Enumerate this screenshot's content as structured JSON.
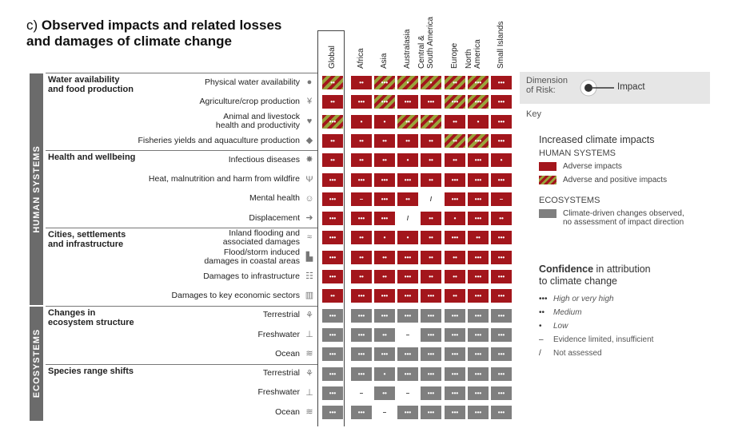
{
  "title": {
    "prefix": "c)",
    "line1": "Observed impacts and related losses",
    "line2": "and damages of climate change"
  },
  "colors": {
    "red": "#a3161c",
    "hatch": "#9aa43b",
    "grey": "#7f7f7f"
  },
  "columns": [
    "Global",
    "Africa",
    "Asia",
    "Australasia",
    "Central &\nSouth America",
    "Europe",
    "North\nAmerica",
    "Small Islands"
  ],
  "sections": [
    {
      "label": "HUMAN SYSTEMS",
      "groups": [
        {
          "label": "Water availability\nand food production",
          "rows": [
            {
              "label": "Physical water availability",
              "icon": "water-drop-icon",
              "glyph": "●",
              "cells": [
                [
                  "h",
                  "2"
                ],
                [
                  "r",
                  "2"
                ],
                [
                  "h",
                  "3"
                ],
                [
                  "h",
                  "1"
                ],
                [
                  "h",
                  "1"
                ],
                [
                  "h",
                  "2"
                ],
                [
                  "h",
                  "3"
                ],
                [
                  "r",
                  "3"
                ]
              ]
            },
            {
              "label": "Agriculture/crop production",
              "icon": "wheat-icon",
              "glyph": "¥",
              "cells": [
                [
                  "r",
                  "2"
                ],
                [
                  "r",
                  "3"
                ],
                [
                  "h",
                  "3"
                ],
                [
                  "r",
                  "3"
                ],
                [
                  "r",
                  "3"
                ],
                [
                  "h",
                  "3"
                ],
                [
                  "h",
                  "3"
                ],
                [
                  "r",
                  "3"
                ]
              ]
            },
            {
              "label": "Animal and livestock\nhealth and productivity",
              "icon": "cow-icon",
              "glyph": "♥",
              "cells": [
                [
                  "h",
                  "3"
                ],
                [
                  "r",
                  "1"
                ],
                [
                  "r",
                  "1"
                ],
                [
                  "h",
                  "2"
                ],
                [
                  "h",
                  "2"
                ],
                [
                  "r",
                  "2"
                ],
                [
                  "r",
                  "1"
                ],
                [
                  "r",
                  "3"
                ]
              ]
            },
            {
              "label": "Fisheries yields and aquaculture production",
              "icon": "fish-icon",
              "glyph": "◆",
              "cells": [
                [
                  "r",
                  "2"
                ],
                [
                  "r",
                  "2"
                ],
                [
                  "r",
                  "2"
                ],
                [
                  "r",
                  "2"
                ],
                [
                  "r",
                  "2"
                ],
                [
                  "h",
                  "2"
                ],
                [
                  "h",
                  "3"
                ],
                [
                  "r",
                  "3"
                ]
              ]
            }
          ]
        },
        {
          "label": "Health and wellbeing",
          "rows": [
            {
              "label": "Infectious diseases",
              "icon": "virus-icon",
              "glyph": "✸",
              "cells": [
                [
                  "r",
                  "2"
                ],
                [
                  "r",
                  "2"
                ],
                [
                  "r",
                  "2"
                ],
                [
                  "r",
                  "1"
                ],
                [
                  "r",
                  "2"
                ],
                [
                  "r",
                  "2"
                ],
                [
                  "r",
                  "3"
                ],
                [
                  "r",
                  "1"
                ]
              ]
            },
            {
              "label": "Heat, malnutrition and harm from wildfire",
              "icon": "wildfire-icon",
              "glyph": "Ψ",
              "cells": [
                [
                  "r",
                  "3"
                ],
                [
                  "r",
                  "3"
                ],
                [
                  "r",
                  "3"
                ],
                [
                  "r",
                  "3"
                ],
                [
                  "r",
                  "2"
                ],
                [
                  "r",
                  "3"
                ],
                [
                  "r",
                  "3"
                ],
                [
                  "r",
                  "3"
                ]
              ]
            },
            {
              "label": "Mental health",
              "icon": "head-icon",
              "glyph": "☺",
              "cells": [
                [
                  "r",
                  "3"
                ],
                [
                  "r",
                  "–"
                ],
                [
                  "r",
                  "3"
                ],
                [
                  "r",
                  "2"
                ],
                [
                  "w",
                  "/"
                ],
                [
                  "r",
                  "3"
                ],
                [
                  "r",
                  "3"
                ],
                [
                  "r",
                  "–"
                ]
              ]
            },
            {
              "label": "Displacement",
              "icon": "displacement-icon",
              "glyph": "➜",
              "cells": [
                [
                  "r",
                  "3"
                ],
                [
                  "r",
                  "3"
                ],
                [
                  "r",
                  "3"
                ],
                [
                  "w",
                  "/"
                ],
                [
                  "r",
                  "2"
                ],
                [
                  "r",
                  "1"
                ],
                [
                  "r",
                  "3"
                ],
                [
                  "r",
                  "2"
                ]
              ]
            }
          ]
        },
        {
          "label": "Cities, settlements\nand infrastructure",
          "rows": [
            {
              "label": "Inland flooding and\nassociated damages",
              "icon": "flood-icon",
              "glyph": "≈",
              "cells": [
                [
                  "r",
                  "3"
                ],
                [
                  "r",
                  "2"
                ],
                [
                  "r",
                  "1"
                ],
                [
                  "r",
                  "1"
                ],
                [
                  "r",
                  "2"
                ],
                [
                  "r",
                  "3"
                ],
                [
                  "r",
                  "2"
                ],
                [
                  "r",
                  "3"
                ]
              ]
            },
            {
              "label": "Flood/storm induced\ndamages in coastal areas",
              "icon": "coastal-city-icon",
              "glyph": "▙",
              "cells": [
                [
                  "r",
                  "3"
                ],
                [
                  "r",
                  "2"
                ],
                [
                  "r",
                  "2"
                ],
                [
                  "r",
                  "3"
                ],
                [
                  "r",
                  "2"
                ],
                [
                  "r",
                  "2"
                ],
                [
                  "r",
                  "3"
                ],
                [
                  "r",
                  "3"
                ]
              ]
            },
            {
              "label": "Damages to infrastructure",
              "icon": "infrastructure-icon",
              "glyph": "☷",
              "cells": [
                [
                  "r",
                  "3"
                ],
                [
                  "r",
                  "2"
                ],
                [
                  "r",
                  "2"
                ],
                [
                  "r",
                  "3"
                ],
                [
                  "r",
                  "2"
                ],
                [
                  "r",
                  "2"
                ],
                [
                  "r",
                  "3"
                ],
                [
                  "r",
                  "3"
                ]
              ]
            },
            {
              "label": "Damages to key economic sectors",
              "icon": "economic-sectors-icon",
              "glyph": "▥",
              "cells": [
                [
                  "r",
                  "2"
                ],
                [
                  "r",
                  "3"
                ],
                [
                  "r",
                  "3"
                ],
                [
                  "r",
                  "3"
                ],
                [
                  "r",
                  "3"
                ],
                [
                  "r",
                  "2"
                ],
                [
                  "r",
                  "3"
                ],
                [
                  "r",
                  "3"
                ]
              ]
            }
          ]
        }
      ]
    },
    {
      "label": "ECOSYSTEMS",
      "groups": [
        {
          "label": "Changes in\necosystem structure",
          "rows": [
            {
              "label": "Terrestrial",
              "icon": "terrestrial-icon",
              "glyph": "⚘",
              "cells": [
                [
                  "g",
                  "3"
                ],
                [
                  "g",
                  "3"
                ],
                [
                  "g",
                  "3"
                ],
                [
                  "g",
                  "3"
                ],
                [
                  "g",
                  "3"
                ],
                [
                  "g",
                  "3"
                ],
                [
                  "g",
                  "3"
                ],
                [
                  "g",
                  "3"
                ]
              ]
            },
            {
              "label": "Freshwater",
              "icon": "freshwater-icon",
              "glyph": "⊥",
              "cells": [
                [
                  "g",
                  "3"
                ],
                [
                  "g",
                  "3"
                ],
                [
                  "g",
                  "2"
                ],
                [
                  "w",
                  "–"
                ],
                [
                  "g",
                  "3"
                ],
                [
                  "g",
                  "3"
                ],
                [
                  "g",
                  "3"
                ],
                [
                  "g",
                  "3"
                ]
              ]
            },
            {
              "label": "Ocean",
              "icon": "ocean-icon",
              "glyph": "≋",
              "cells": [
                [
                  "g",
                  "3"
                ],
                [
                  "g",
                  "3"
                ],
                [
                  "g",
                  "3"
                ],
                [
                  "g",
                  "3"
                ],
                [
                  "g",
                  "3"
                ],
                [
                  "g",
                  "3"
                ],
                [
                  "g",
                  "3"
                ],
                [
                  "g",
                  "3"
                ]
              ]
            }
          ]
        },
        {
          "label": "Species range shifts",
          "rows": [
            {
              "label": "Terrestrial",
              "icon": "terrestrial-icon",
              "glyph": "⚘",
              "cells": [
                [
                  "g",
                  "3"
                ],
                [
                  "g",
                  "3"
                ],
                [
                  "g",
                  "1"
                ],
                [
                  "g",
                  "3"
                ],
                [
                  "g",
                  "3"
                ],
                [
                  "g",
                  "3"
                ],
                [
                  "g",
                  "3"
                ],
                [
                  "g",
                  "3"
                ]
              ]
            },
            {
              "label": "Freshwater",
              "icon": "freshwater-icon",
              "glyph": "⊥",
              "cells": [
                [
                  "g",
                  "3"
                ],
                [
                  "w",
                  "–"
                ],
                [
                  "g",
                  "2"
                ],
                [
                  "w",
                  "–"
                ],
                [
                  "g",
                  "3"
                ],
                [
                  "g",
                  "3"
                ],
                [
                  "g",
                  "3"
                ],
                [
                  "g",
                  "3"
                ]
              ]
            },
            {
              "label": "Ocean",
              "icon": "ocean-icon",
              "glyph": "≋",
              "cells": [
                [
                  "g",
                  "3"
                ],
                [
                  "g",
                  "3"
                ],
                [
                  "w",
                  "–"
                ],
                [
                  "g",
                  "3"
                ],
                [
                  "g",
                  "3"
                ],
                [
                  "g",
                  "3"
                ],
                [
                  "g",
                  "3"
                ],
                [
                  "g",
                  "3"
                ]
              ]
            }
          ]
        }
      ]
    }
  ],
  "legend": {
    "dimension_label": "Dimension\nof Risk:",
    "impact_label": "Impact",
    "key_label": "Key",
    "increased_title": "Increased climate impacts",
    "human_systems": "HUMAN SYSTEMS",
    "adverse": "Adverse impacts",
    "adverse_positive": "Adverse and positive impacts",
    "ecosystems": "ECOSYSTEMS",
    "eco_desc": "Climate-driven changes observed,\nno assessment of impact direction",
    "confidence_bold": "Confidence",
    "confidence_rest": " in attribution",
    "confidence_line2": "to climate change",
    "conf_items": [
      {
        "sym": "•••",
        "label": "High or very high"
      },
      {
        "sym": "••",
        "label": "Medium"
      },
      {
        "sym": "•",
        "label": "Low"
      },
      {
        "sym": "–",
        "label": "Evidence limited, insufficient"
      },
      {
        "sym": "/",
        "label": "Not assessed"
      }
    ]
  }
}
